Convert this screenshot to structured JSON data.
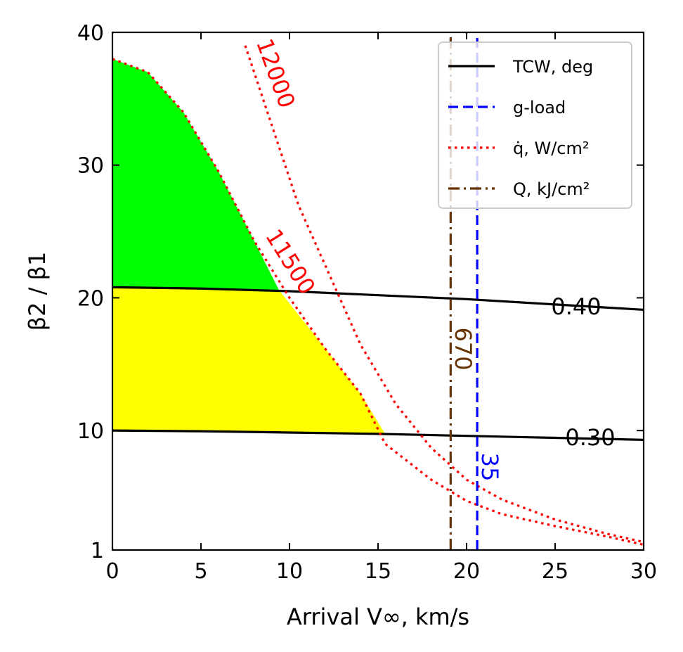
{
  "chart_data": {
    "type": "line",
    "xlabel": "Arrival V∞, km/s",
    "ylabel": "β2 / β1",
    "xlim": [
      0,
      30
    ],
    "ylim": [
      1,
      40
    ],
    "xticks": [
      0,
      5,
      10,
      15,
      20,
      25,
      30
    ],
    "yticks": [
      1,
      10,
      20,
      30,
      40
    ],
    "grid": false,
    "legend_position": "top-right",
    "legend": [
      {
        "label": "TCW, deg",
        "color": "#000000",
        "style": "solid"
      },
      {
        "label": "g-load",
        "color": "#0000ff",
        "style": "dashed"
      },
      {
        "label": "q̇, W/cm²",
        "color": "#ff0000",
        "style": "dotted"
      },
      {
        "label": "Q, kJ/cm²",
        "color": "#663300",
        "style": "dashdot"
      }
    ],
    "series": [
      {
        "style": "solid",
        "color": "#000000",
        "label": "0.40",
        "x": [
          0,
          5,
          10,
          15,
          20,
          25,
          30
        ],
        "y": [
          20.8,
          20.7,
          20.5,
          20.2,
          19.9,
          19.5,
          19.1
        ]
      },
      {
        "style": "solid",
        "color": "#000000",
        "label": "0.30",
        "x": [
          0,
          5,
          10,
          15,
          20,
          25,
          30
        ],
        "y": [
          10.0,
          9.95,
          9.85,
          9.75,
          9.6,
          9.45,
          9.3
        ]
      },
      {
        "style": "dotted",
        "color": "#ff0000",
        "label": "11500",
        "x": [
          0,
          2,
          4,
          6,
          8,
          10,
          12,
          14,
          15.4,
          18,
          20,
          22,
          25,
          28,
          30
        ],
        "y": [
          38.0,
          37.0,
          34.0,
          29.5,
          24.3,
          20.0,
          16.2,
          12.8,
          9.0,
          6.3,
          4.7,
          3.7,
          2.8,
          2.0,
          1.4
        ]
      },
      {
        "style": "dotted",
        "color": "#ff0000",
        "label": "12000",
        "x": [
          7.5,
          8.5,
          9.5,
          10.5,
          12,
          14,
          16,
          18,
          20,
          22,
          25,
          28,
          30
        ],
        "y": [
          39.0,
          35.0,
          31.0,
          27.0,
          22.5,
          16.5,
          12.0,
          8.7,
          6.3,
          4.8,
          3.3,
          2.2,
          1.6
        ]
      },
      {
        "style": "dashdot",
        "color": "#663300",
        "label": "670",
        "x": [
          19.1,
          19.1
        ],
        "y": [
          1.0,
          40.0
        ]
      },
      {
        "style": "dashed",
        "color": "#0000ff",
        "label": "35",
        "x": [
          20.6,
          20.6
        ],
        "y": [
          1.0,
          40.0
        ]
      }
    ],
    "regions": [
      {
        "color": "#00ff00",
        "x": [
          0,
          2,
          4,
          6,
          8,
          9.4
        ],
        "y_lower": [
          20.8,
          20.78,
          20.75,
          20.7,
          20.65,
          20.6
        ],
        "y_upper": [
          38.0,
          37.0,
          34.0,
          29.5,
          24.3,
          20.6
        ]
      },
      {
        "color": "#ffff00",
        "x": [
          0,
          5,
          9.4,
          12,
          14,
          15.4
        ],
        "y_lower": [
          10.0,
          9.95,
          9.88,
          9.82,
          9.78,
          9.75
        ],
        "y_upper": [
          20.8,
          20.7,
          20.6,
          16.2,
          12.8,
          9.75
        ]
      }
    ]
  }
}
